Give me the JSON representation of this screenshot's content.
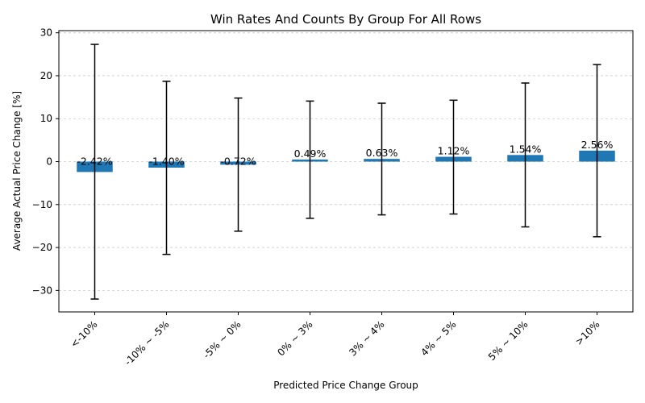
{
  "chart_data": {
    "type": "bar",
    "title": "Win Rates And Counts By Group For All Rows",
    "xlabel": "Predicted Price Change Group",
    "ylabel": "Average Actual Price Change [%]",
    "categories": [
      "<-10%",
      "-10% ~ -5%",
      "-5% ~ 0%",
      "0% ~ 3%",
      "3% ~ 4%",
      "4% ~ 5%",
      "5% ~ 10%",
      ">10%"
    ],
    "values": [
      -2.42,
      -1.4,
      -0.72,
      0.49,
      0.63,
      1.12,
      1.54,
      2.56
    ],
    "value_labels": [
      "-2.42%",
      "-1.40%",
      "-0.72%",
      "0.49%",
      "0.63%",
      "1.12%",
      "1.54%",
      "2.56%"
    ],
    "error_upper": [
      27.3,
      18.7,
      14.8,
      14.1,
      13.6,
      14.3,
      18.3,
      22.6
    ],
    "error_lower": [
      -32.0,
      -21.6,
      -16.2,
      -13.2,
      -12.4,
      -12.2,
      -15.2,
      -17.5
    ],
    "ylim": [
      -35,
      30.5
    ],
    "yticks": [
      -30,
      -20,
      -10,
      0,
      10,
      20,
      30
    ],
    "ytick_labels": [
      "−30",
      "−20",
      "−10",
      "0",
      "10",
      "20",
      "30"
    ],
    "grid": "y-dashed",
    "bar_color": "#1f77b4",
    "error_color": "#000000",
    "grid_color": "#cccccc"
  }
}
